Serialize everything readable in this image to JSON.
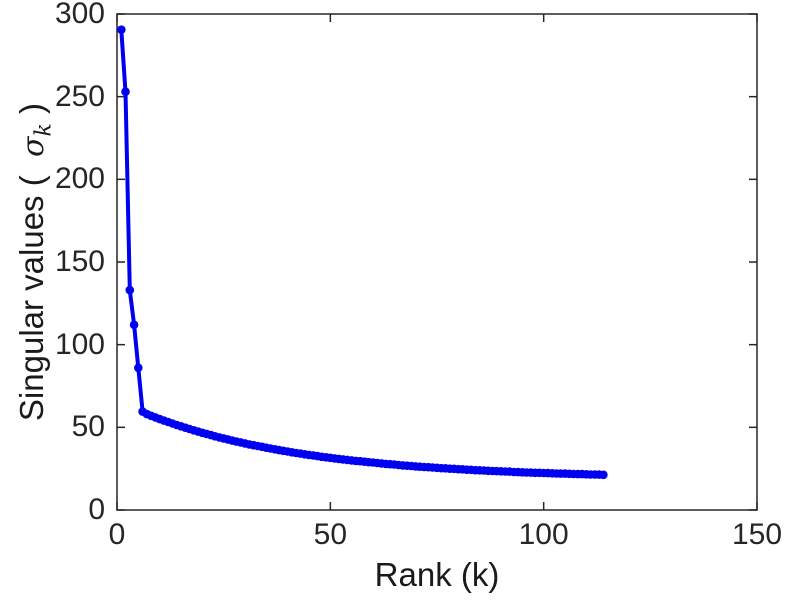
{
  "figure": {
    "background": "#ffffff",
    "axis_color": "#262626",
    "label_color": "#1a1a1a",
    "line_color": "#0000f0",
    "ylabel_prefix": "Singular values (  ",
    "ylabel_symbol": "σ",
    "ylabel_subscript": "k",
    "ylabel_suffix": " )"
  },
  "chart_data": {
    "type": "line",
    "title": "",
    "xlabel": "Rank (k)",
    "ylabel": "Singular values ( σ_k )",
    "xlim": [
      0,
      150
    ],
    "ylim": [
      0,
      300
    ],
    "xticks": [
      0,
      50,
      100,
      150
    ],
    "yticks": [
      0,
      50,
      100,
      150,
      200,
      250,
      300
    ],
    "grid": false,
    "legend": null,
    "marker": "circle",
    "line_color": "#0000f0",
    "series": [
      {
        "name": "singular_values",
        "x_start": 1,
        "x_step": 1,
        "values": [
          290.5,
          253.0,
          133.0,
          112.0,
          86.0,
          59.5,
          58.0,
          57.0,
          56.0,
          55.0,
          54.1,
          53.2,
          52.3,
          51.4,
          50.6,
          49.8,
          49.0,
          48.2,
          47.4,
          46.7,
          46.0,
          45.3,
          44.6,
          43.9,
          43.3,
          42.7,
          42.0,
          41.4,
          40.9,
          40.3,
          39.7,
          39.2,
          38.7,
          38.2,
          37.7,
          37.2,
          36.7,
          36.2,
          35.8,
          35.4,
          34.9,
          34.5,
          34.1,
          33.7,
          33.3,
          33.0,
          32.6,
          32.2,
          31.9,
          31.6,
          31.2,
          30.9,
          30.6,
          30.3,
          30.0,
          29.7,
          29.5,
          29.2,
          28.9,
          28.7,
          28.4,
          28.2,
          27.9,
          27.7,
          27.5,
          27.2,
          27.0,
          26.8,
          26.6,
          26.4,
          26.2,
          26.0,
          25.9,
          25.7,
          25.5,
          25.3,
          25.2,
          25.0,
          24.9,
          24.7,
          24.6,
          24.4,
          24.3,
          24.1,
          24.0,
          23.9,
          23.7,
          23.6,
          23.5,
          23.4,
          23.3,
          23.2,
          23.0,
          22.9,
          22.8,
          22.7,
          22.6,
          22.5,
          22.5,
          22.4,
          22.3,
          22.2,
          22.1,
          22.0,
          22.0,
          21.9,
          21.8,
          21.7,
          21.7,
          21.6,
          21.5,
          21.5,
          21.4,
          21.3
        ]
      }
    ]
  }
}
